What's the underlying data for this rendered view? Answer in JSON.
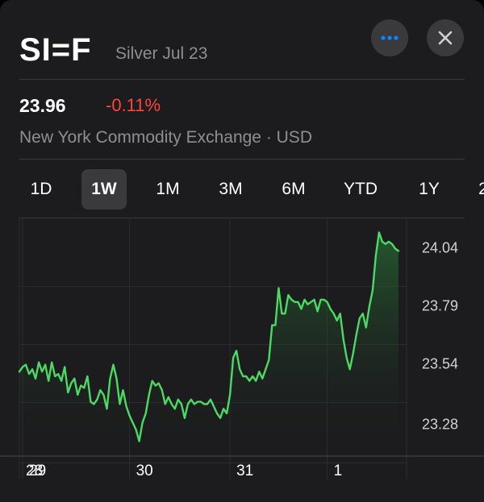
{
  "header": {
    "symbol": "SI=F",
    "name": "Silver Jul 23"
  },
  "quote": {
    "price": "23.96",
    "change": "-0.11%",
    "exchange": "New York Commodity Exchange · USD"
  },
  "colors": {
    "background": "#1c1c1e",
    "accent_blue": "#0a84ff",
    "negative": "#ff453a",
    "line": "#4cd964"
  },
  "ranges": [
    {
      "label": "1D",
      "selected": false
    },
    {
      "label": "1W",
      "selected": true
    },
    {
      "label": "1M",
      "selected": false
    },
    {
      "label": "3M",
      "selected": false
    },
    {
      "label": "6M",
      "selected": false
    },
    {
      "label": "YTD",
      "selected": false
    },
    {
      "label": "1Y",
      "selected": false
    },
    {
      "label": "2",
      "selected": false
    }
  ],
  "icons": {
    "more": "ellipsis-icon",
    "close": "close-icon"
  },
  "chart_data": {
    "type": "area",
    "ylim": [
      23.15,
      24.15
    ],
    "y_ticks": [
      "24.04",
      "23.79",
      "23.54",
      "23.28"
    ],
    "x_ticks": [
      "28",
      "29",
      "30",
      "31",
      "1"
    ],
    "x": [
      0,
      1,
      2,
      3,
      4,
      5,
      6,
      7,
      8,
      9,
      10,
      11,
      12,
      13,
      14,
      15,
      16,
      17,
      18,
      19,
      20,
      21,
      22,
      23,
      24,
      25,
      26,
      27,
      28,
      29,
      30,
      31,
      32,
      33,
      34,
      35,
      36,
      37,
      38,
      39,
      40,
      41,
      42,
      43,
      44,
      45,
      46,
      47,
      48,
      49,
      50,
      51,
      52,
      53,
      54,
      55,
      56,
      57,
      58,
      59,
      60,
      61,
      62,
      63,
      64,
      65,
      66,
      67,
      68,
      69,
      70,
      71,
      72,
      73,
      74,
      75,
      76,
      77,
      78,
      79,
      80,
      81,
      82,
      83,
      84,
      85,
      86,
      87,
      88,
      89,
      90,
      91,
      92,
      93,
      94,
      95,
      96,
      97,
      98,
      99,
      100,
      101,
      102,
      103,
      104,
      105,
      106,
      107,
      108,
      109,
      110,
      111,
      112,
      113,
      114,
      115,
      116,
      117
    ],
    "values": [
      23.5,
      23.52,
      23.53,
      23.49,
      23.51,
      23.47,
      23.54,
      23.5,
      23.53,
      23.46,
      23.54,
      23.48,
      23.49,
      23.46,
      23.52,
      23.41,
      23.45,
      23.47,
      23.4,
      23.44,
      23.43,
      23.48,
      23.37,
      23.36,
      23.38,
      23.42,
      23.4,
      23.34,
      23.47,
      23.53,
      23.47,
      23.36,
      23.42,
      23.35,
      23.31,
      23.28,
      23.25,
      23.2,
      23.28,
      23.32,
      23.4,
      23.46,
      23.44,
      23.45,
      23.42,
      23.36,
      23.39,
      23.36,
      23.34,
      23.38,
      23.36,
      23.3,
      23.36,
      23.38,
      23.36,
      23.37,
      23.37,
      23.36,
      23.36,
      23.38,
      23.35,
      23.32,
      23.3,
      23.34,
      23.32,
      23.4,
      23.56,
      23.59,
      23.51,
      23.48,
      23.48,
      23.46,
      23.48,
      23.46,
      23.5,
      23.47,
      23.51,
      23.55,
      23.7,
      23.7,
      23.86,
      23.75,
      23.75,
      23.83,
      23.81,
      23.8,
      23.8,
      23.77,
      23.81,
      23.79,
      23.8,
      23.81,
      23.76,
      23.81,
      23.81,
      23.8,
      23.77,
      23.75,
      23.72,
      23.75,
      23.64,
      23.56,
      23.51,
      23.58,
      23.66,
      23.73,
      23.75,
      23.69,
      23.78,
      23.85,
      24.0,
      24.1,
      24.06,
      24.05,
      24.06,
      24.05,
      24.03,
      24.02
    ],
    "day_boundaries": [
      1,
      34,
      65,
      95
    ],
    "grid": true
  }
}
